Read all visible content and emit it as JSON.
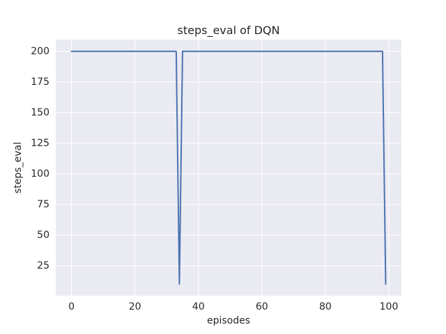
{
  "chart_data": {
    "type": "line",
    "title": "steps_eval of DQN",
    "xlabel": "episodes",
    "ylabel": "steps_eval",
    "x_start": 0,
    "x_step": 1,
    "y": [
      200,
      200,
      200,
      200,
      200,
      200,
      200,
      200,
      200,
      200,
      200,
      200,
      200,
      200,
      200,
      200,
      200,
      200,
      200,
      200,
      200,
      200,
      200,
      200,
      200,
      200,
      200,
      200,
      200,
      200,
      200,
      200,
      200,
      200,
      10,
      200,
      200,
      200,
      200,
      200,
      200,
      200,
      200,
      200,
      200,
      200,
      200,
      200,
      200,
      200,
      200,
      200,
      200,
      200,
      200,
      200,
      200,
      200,
      200,
      200,
      200,
      200,
      200,
      200,
      200,
      200,
      200,
      200,
      200,
      200,
      200,
      200,
      200,
      200,
      200,
      200,
      200,
      200,
      200,
      200,
      200,
      200,
      200,
      200,
      200,
      200,
      200,
      200,
      200,
      200,
      200,
      200,
      200,
      200,
      200,
      200,
      200,
      200,
      200,
      10
    ],
    "xlim": [
      -4.95,
      103.95
    ],
    "ylim": [
      0.5,
      209.5
    ],
    "xticks": [
      0,
      20,
      40,
      60,
      80,
      100
    ],
    "xtick_labels": [
      "0",
      "20",
      "40",
      "60",
      "80",
      "100"
    ],
    "yticks": [
      25,
      50,
      75,
      100,
      125,
      150,
      175,
      200
    ],
    "ytick_labels": [
      "25",
      "50",
      "75",
      "100",
      "125",
      "150",
      "175",
      "200"
    ],
    "grid": true,
    "legend": "none",
    "line_width": 2,
    "colors": {
      "line": "#4c72b0",
      "plot_background": "#eaeaf2",
      "grid": "#ffffff",
      "text": "#262626",
      "figure_background": "#ffffff"
    }
  }
}
